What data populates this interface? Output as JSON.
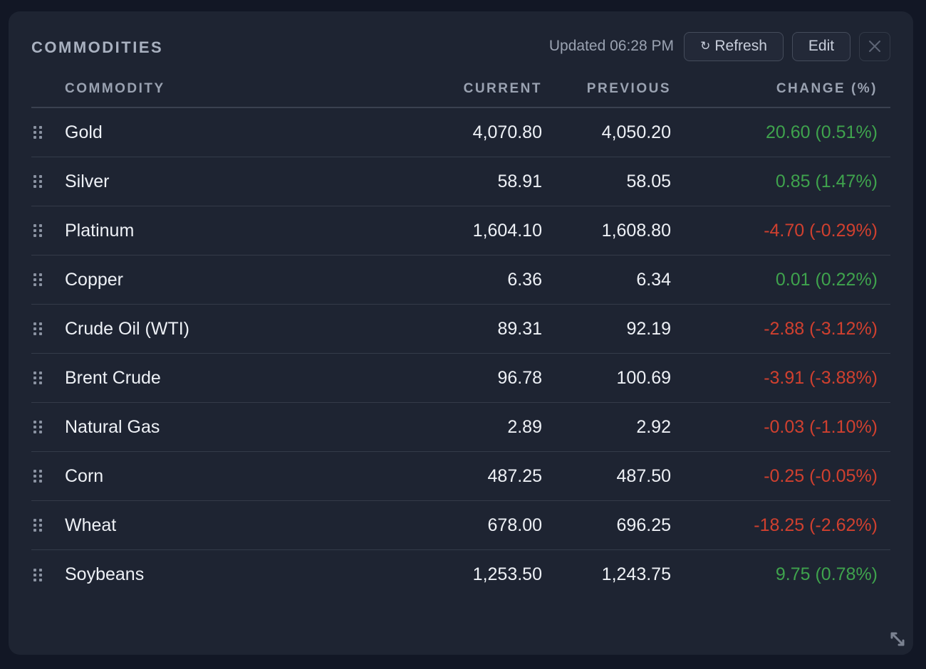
{
  "widget": {
    "title": "COMMODITIES",
    "updated": "Updated 06:28 PM",
    "refresh_label": "Refresh",
    "refresh_icon": "↻",
    "edit_label": "Edit"
  },
  "columns": {
    "commodity": "COMMODITY",
    "current": "CURRENT",
    "previous": "PREVIOUS",
    "change": "CHANGE (%)"
  },
  "rows": [
    {
      "name": "Gold",
      "current": "4,070.80",
      "previous": "4,050.20",
      "change": "20.60 (0.51%)",
      "direction": "up"
    },
    {
      "name": "Silver",
      "current": "58.91",
      "previous": "58.05",
      "change": "0.85 (1.47%)",
      "direction": "up"
    },
    {
      "name": "Platinum",
      "current": "1,604.10",
      "previous": "1,608.80",
      "change": "-4.70 (-0.29%)",
      "direction": "down"
    },
    {
      "name": "Copper",
      "current": "6.36",
      "previous": "6.34",
      "change": "0.01 (0.22%)",
      "direction": "up"
    },
    {
      "name": "Crude Oil (WTI)",
      "current": "89.31",
      "previous": "92.19",
      "change": "-2.88 (-3.12%)",
      "direction": "down"
    },
    {
      "name": "Brent Crude",
      "current": "96.78",
      "previous": "100.69",
      "change": "-3.91 (-3.88%)",
      "direction": "down"
    },
    {
      "name": "Natural Gas",
      "current": "2.89",
      "previous": "2.92",
      "change": "-0.03 (-1.10%)",
      "direction": "down"
    },
    {
      "name": "Corn",
      "current": "487.25",
      "previous": "487.50",
      "change": "-0.25 (-0.05%)",
      "direction": "down"
    },
    {
      "name": "Wheat",
      "current": "678.00",
      "previous": "696.25",
      "change": "-18.25 (-2.62%)",
      "direction": "down"
    },
    {
      "name": "Soybeans",
      "current": "1,253.50",
      "previous": "1,243.75",
      "change": "9.75 (0.78%)",
      "direction": "up"
    }
  ],
  "colors": {
    "up": "#3fa34d",
    "down": "#d0402f",
    "panel": "#1e2432",
    "background": "#121725"
  },
  "icons": {
    "drag": "drag-handle-icon",
    "close": "close-icon",
    "resize": "resize-icon",
    "refresh": "refresh-icon"
  }
}
